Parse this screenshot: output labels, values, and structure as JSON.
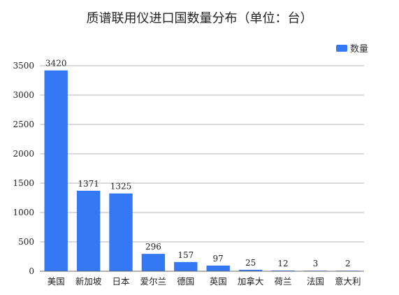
{
  "chart_data": {
    "type": "bar",
    "title": "质谱联用仪进口国数量分布（单位：台）",
    "categories": [
      "美国",
      "新加坡",
      "日本",
      "爱尔兰",
      "德国",
      "英国",
      "加拿大",
      "荷兰",
      "法国",
      "意大利"
    ],
    "series": [
      {
        "name": "数量",
        "color": "#3478f6",
        "values": [
          3420,
          1371,
          1325,
          296,
          157,
          97,
          25,
          12,
          3,
          2
        ]
      }
    ],
    "ylim": [
      0,
      3500
    ],
    "yticks": [
      0,
      500,
      1000,
      1500,
      2000,
      2500,
      3000,
      3500
    ],
    "grid": true,
    "legend_position": "top-right",
    "data_labels": true
  }
}
